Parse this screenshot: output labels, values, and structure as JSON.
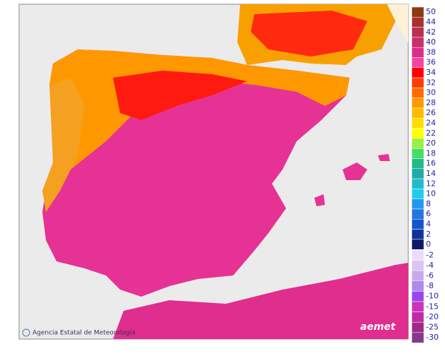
{
  "footer": {
    "agency": "Agencia Estatal de Meteorología",
    "logo": "aemet"
  },
  "legend": {
    "groups": [
      [
        {
          "label": "50",
          "color": "#8b3a14"
        },
        {
          "label": "44",
          "color": "#a8302c"
        },
        {
          "label": "42",
          "color": "#b83050"
        },
        {
          "label": "40",
          "color": "#c82d6c"
        },
        {
          "label": "38",
          "color": "#dc2c88"
        },
        {
          "label": "36",
          "color": "#f244a4"
        },
        {
          "label": "34",
          "color": "#ff0000"
        },
        {
          "label": "32",
          "color": "#ff3c00"
        },
        {
          "label": "30",
          "color": "#ff6a00"
        },
        {
          "label": "28",
          "color": "#ff9900"
        },
        {
          "label": "26",
          "color": "#ffbb00"
        },
        {
          "label": "24",
          "color": "#ffdd00"
        },
        {
          "label": "22",
          "color": "#ffff00"
        },
        {
          "label": "20",
          "color": "#99ee44"
        },
        {
          "label": "18",
          "color": "#44dd66"
        },
        {
          "label": "16",
          "color": "#22bb88"
        },
        {
          "label": "14",
          "color": "#22aaaa"
        },
        {
          "label": "12",
          "color": "#22bbcc"
        },
        {
          "label": "10",
          "color": "#22ccee"
        },
        {
          "label": "8",
          "color": "#2299ee"
        },
        {
          "label": "6",
          "color": "#2277dd"
        },
        {
          "label": "4",
          "color": "#1155cc"
        },
        {
          "label": "2",
          "color": "#113399"
        },
        {
          "label": "0",
          "color": "#0a1a66"
        }
      ],
      [
        {
          "label": "-2",
          "color": "#eadcf8"
        },
        {
          "label": "-4",
          "color": "#dac4f2"
        },
        {
          "label": "-6",
          "color": "#c8a8ee"
        },
        {
          "label": "-8",
          "color": "#b088ee"
        },
        {
          "label": "-10",
          "color": "#9944ee"
        },
        {
          "label": "-15",
          "color": "#cc33bb"
        },
        {
          "label": "-20",
          "color": "#c02aa4"
        },
        {
          "label": "-25",
          "color": "#a02888"
        },
        {
          "label": "-30",
          "color": "#86388c"
        }
      ]
    ]
  }
}
